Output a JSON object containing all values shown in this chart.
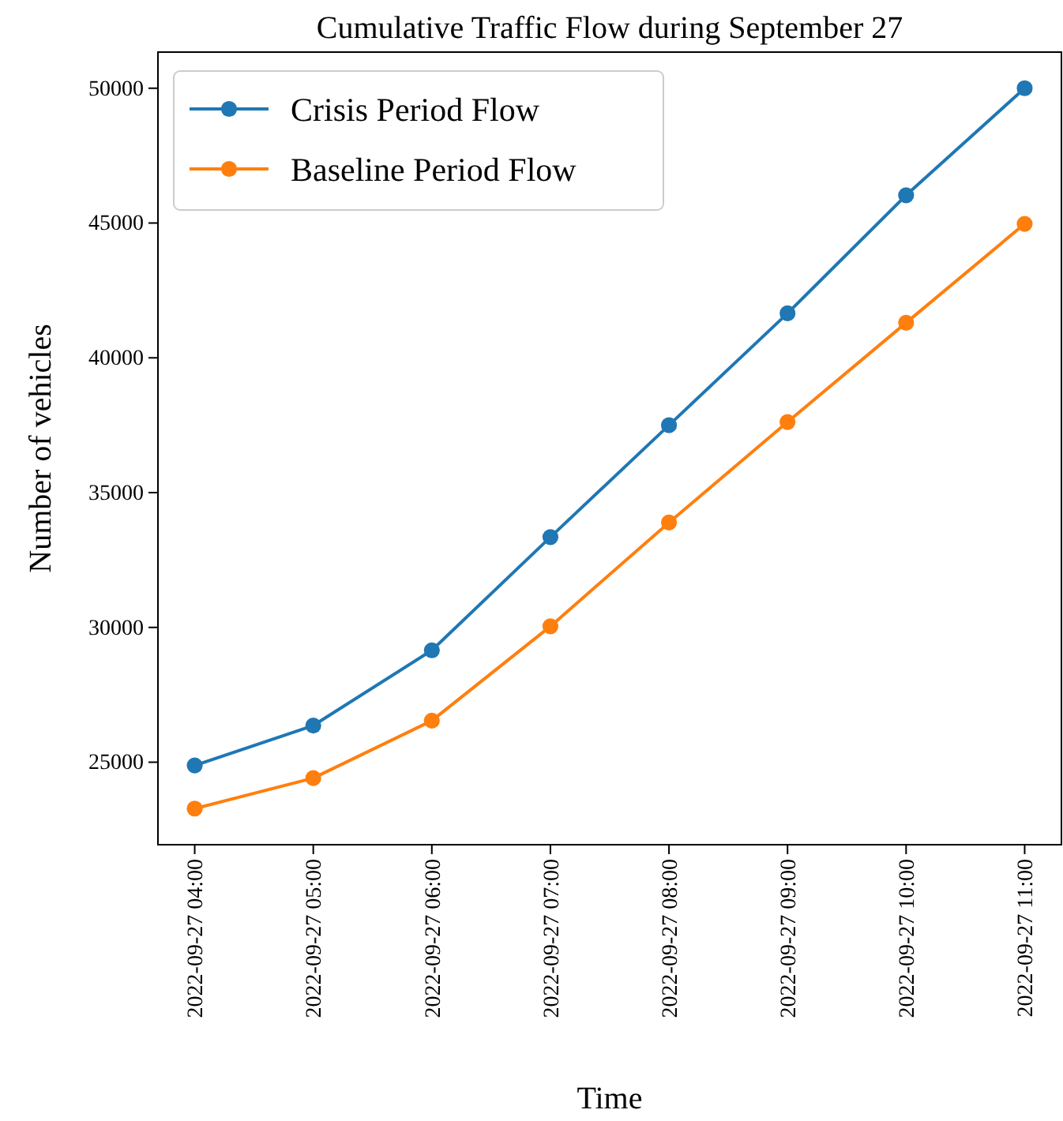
{
  "chart_data": {
    "type": "line",
    "title": "Cumulative Traffic Flow during September 27",
    "xlabel": "Time",
    "ylabel": "Number of vehicles",
    "categories": [
      "2022-09-27 04:00",
      "2022-09-27 05:00",
      "2022-09-27 06:00",
      "2022-09-27 07:00",
      "2022-09-27 08:00",
      "2022-09-27 09:00",
      "2022-09-27 10:00",
      "2022-09-27 11:00"
    ],
    "series": [
      {
        "name": "Crisis Period Flow",
        "color": "#1f77b4",
        "values": [
          24880,
          26360,
          29150,
          33350,
          37500,
          41650,
          46030,
          50000
        ]
      },
      {
        "name": "Baseline Period Flow",
        "color": "#ff7f0e",
        "values": [
          23280,
          24410,
          26540,
          30040,
          33890,
          37620,
          41300,
          44970
        ]
      }
    ],
    "ylim": [
      21940,
      51340
    ],
    "yticks": [
      25000,
      30000,
      35000,
      40000,
      45000,
      50000
    ],
    "grid": false,
    "legend": "top left",
    "marker": "circle",
    "line_style": "solid"
  }
}
